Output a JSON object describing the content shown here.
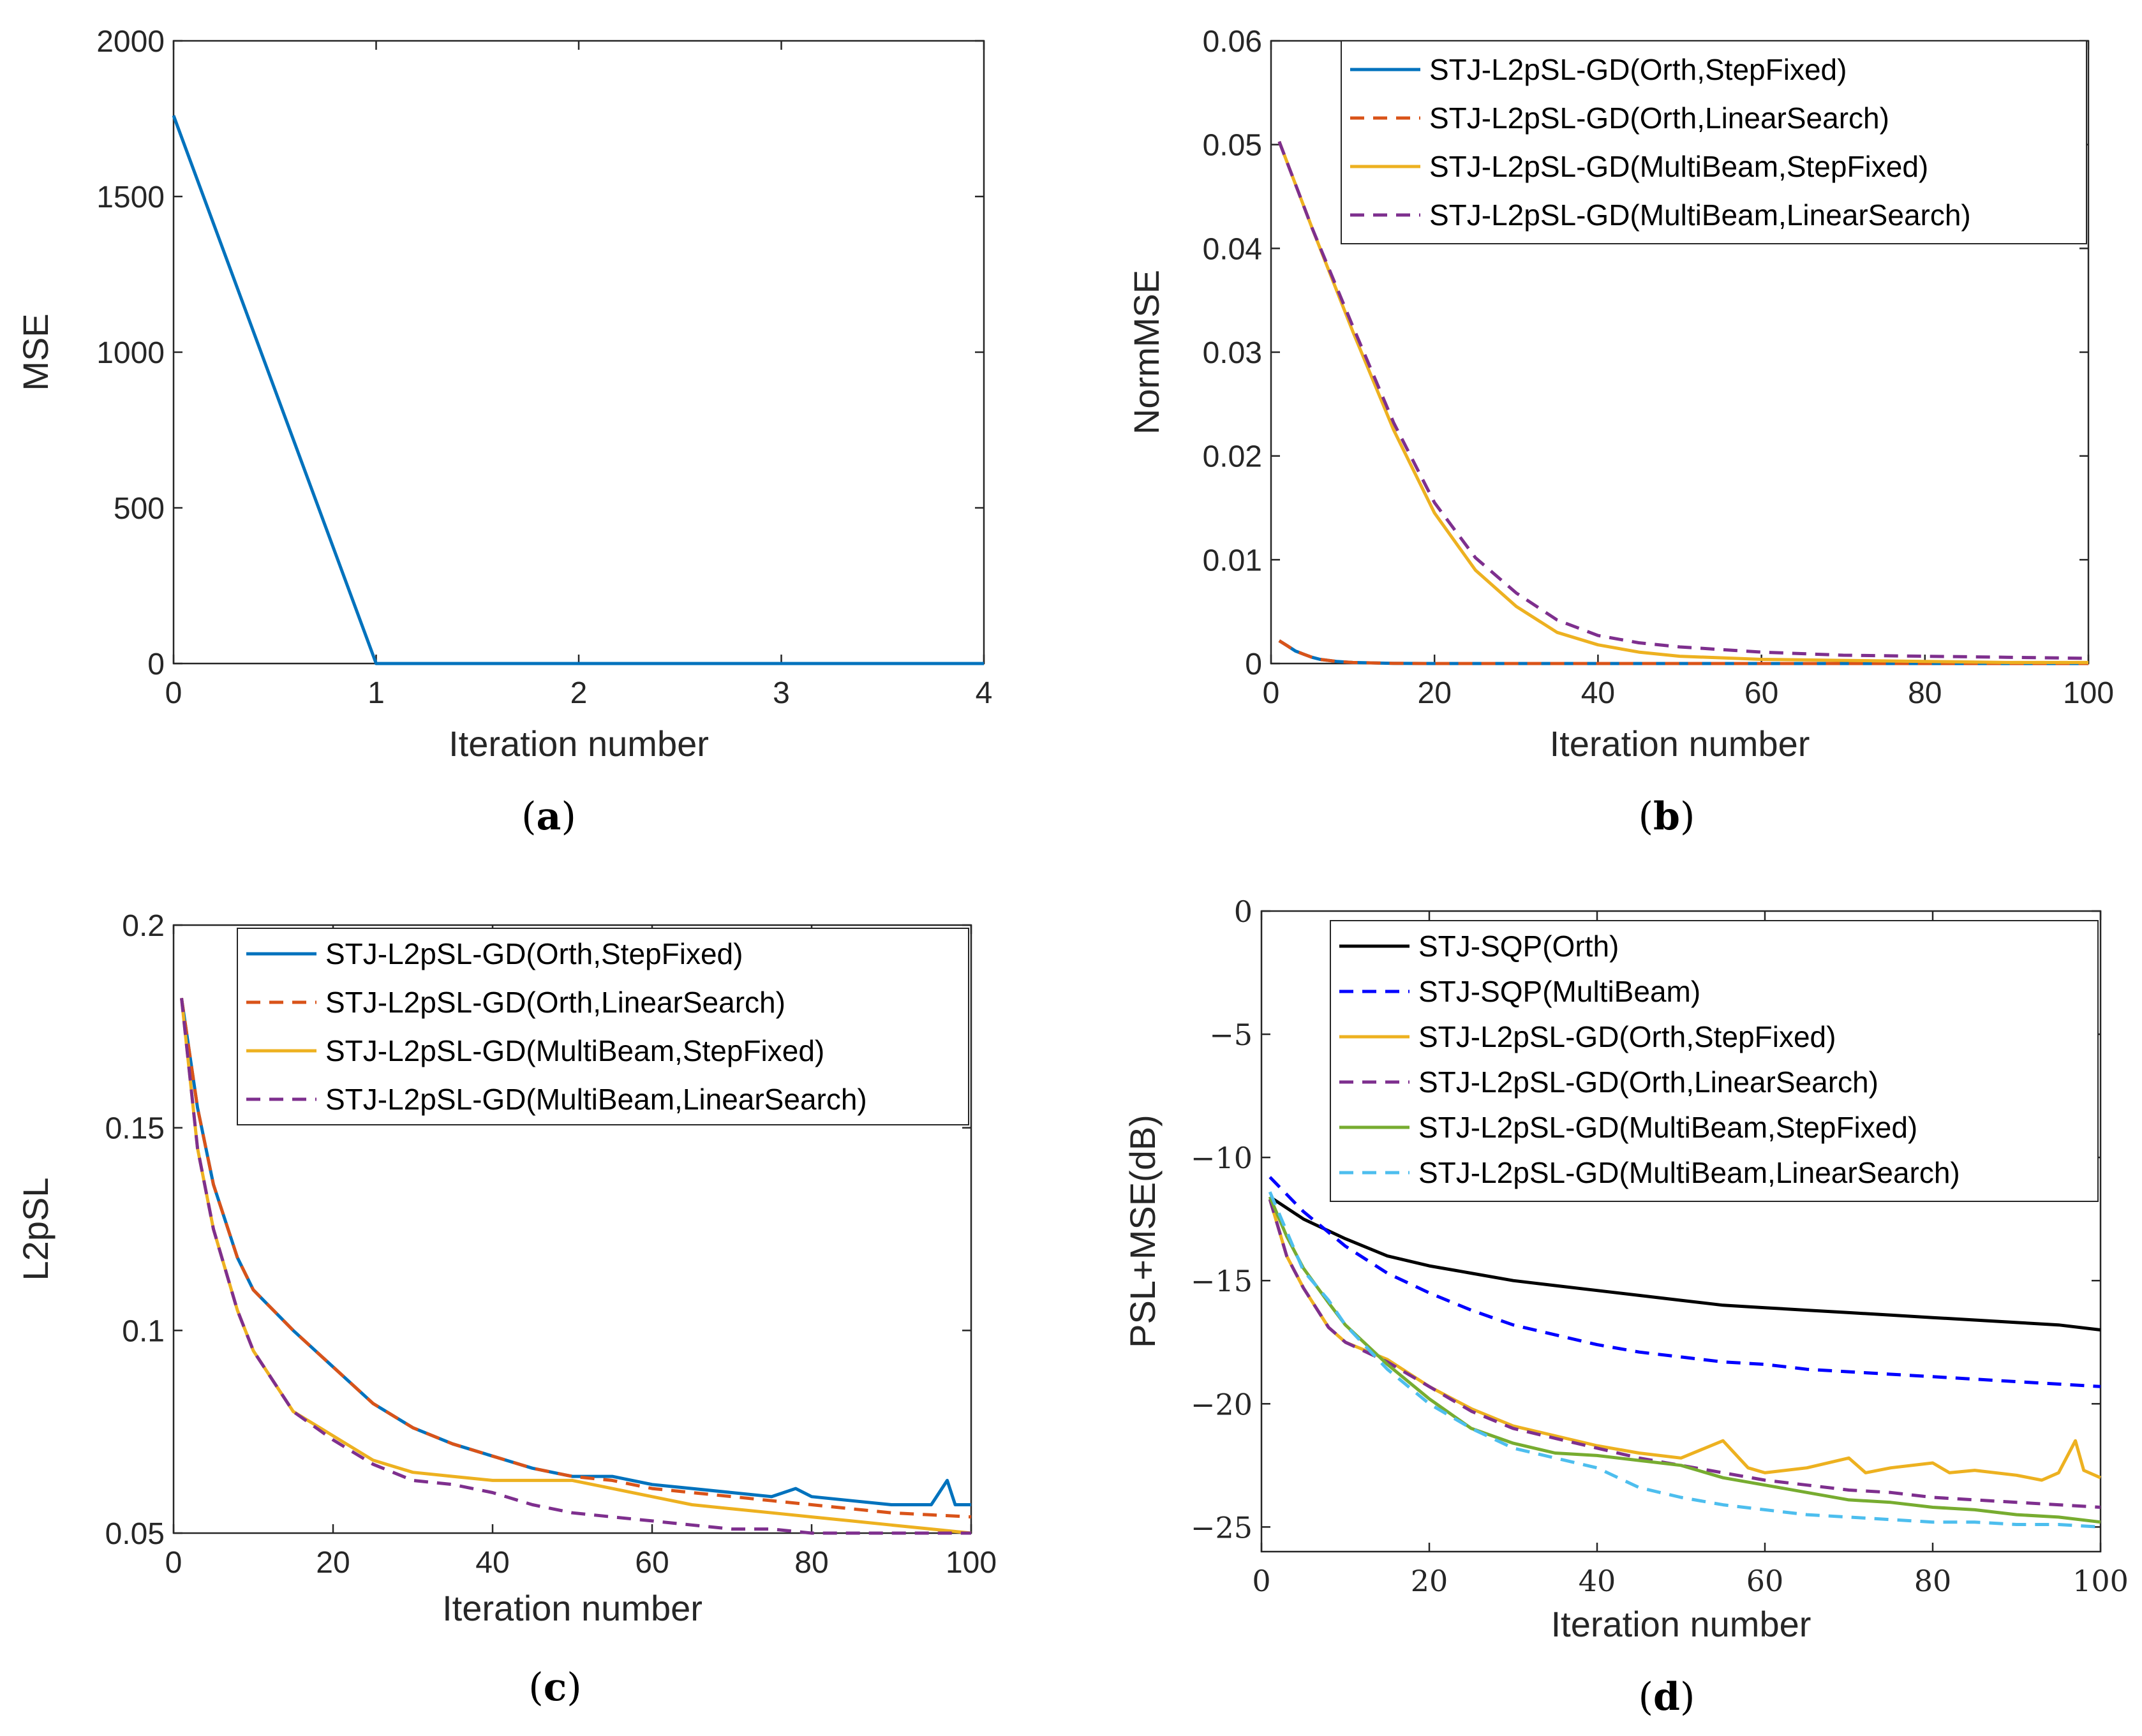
{
  "chart_data": [
    {
      "id": "a",
      "type": "line",
      "caption_open": "(",
      "caption_letter": "a",
      "caption_close": ")",
      "xlabel": "Iteration number",
      "ylabel": "MSE",
      "xlim": [
        0,
        4
      ],
      "ylim": [
        0,
        2000
      ],
      "xticks": [
        0,
        1,
        2,
        3,
        4
      ],
      "xtick_labels": [
        "0",
        "1",
        "2",
        "3",
        "4"
      ],
      "yticks": [
        0,
        500,
        1000,
        1500,
        2000
      ],
      "ytick_labels": [
        "0",
        "500",
        "1000",
        "1500",
        "2000"
      ],
      "series": [
        {
          "name": "MSE",
          "color": "#0072BD",
          "dash": "solid",
          "x": [
            0,
            1,
            2,
            3,
            4
          ],
          "y": [
            1760,
            0,
            0,
            0,
            0
          ]
        }
      ]
    },
    {
      "id": "b",
      "type": "line",
      "caption_open": "(",
      "caption_letter": "b",
      "caption_close": ")",
      "xlabel": "Iteration number",
      "ylabel": "NormMSE",
      "xlim": [
        0,
        100
      ],
      "ylim": [
        0,
        0.06
      ],
      "xticks": [
        0,
        20,
        40,
        60,
        80,
        100
      ],
      "xtick_labels": [
        "0",
        "20",
        "40",
        "60",
        "80",
        "100"
      ],
      "yticks": [
        0,
        0.01,
        0.02,
        0.03,
        0.04,
        0.05,
        0.06
      ],
      "ytick_labels": [
        "0",
        "0.01",
        "0.02",
        "0.03",
        "0.04",
        "0.05",
        "0.06"
      ],
      "legend_position": "top-right",
      "series": [
        {
          "name": "STJ-L2pSL-GD(Orth,StepFixed)",
          "color": "#0072BD",
          "dash": "solid",
          "x": [
            1,
            2,
            3,
            4,
            5,
            6,
            8,
            10,
            15,
            20,
            30,
            50,
            100
          ],
          "y": [
            0.0022,
            0.0017,
            0.0012,
            0.0009,
            0.0006,
            0.0004,
            0.0002,
            0.0001,
            2e-05,
            0,
            0,
            0,
            0
          ]
        },
        {
          "name": "STJ-L2pSL-GD(Orth,LinearSearch)",
          "color": "#D95319",
          "dash": "dashed",
          "x": [
            1,
            2,
            3,
            4,
            5,
            6,
            8,
            10,
            15,
            20,
            30,
            50,
            100
          ],
          "y": [
            0.0022,
            0.0017,
            0.0012,
            0.0009,
            0.0006,
            0.0004,
            0.0002,
            0.0001,
            2e-05,
            0,
            0,
            0,
            0
          ]
        },
        {
          "name": "STJ-L2pSL-GD(MultiBeam,StepFixed)",
          "color": "#EDB120",
          "dash": "solid",
          "x": [
            1,
            5,
            10,
            15,
            20,
            25,
            30,
            35,
            40,
            45,
            50,
            60,
            70,
            80,
            90,
            100
          ],
          "y": [
            0.0503,
            0.042,
            0.032,
            0.0225,
            0.0145,
            0.009,
            0.0055,
            0.003,
            0.0018,
            0.0011,
            0.0007,
            0.0004,
            0.0003,
            0.0002,
            0.0001,
            0.0001
          ]
        },
        {
          "name": "STJ-L2pSL-GD(MultiBeam,LinearSearch)",
          "color": "#7E2F8E",
          "dash": "dashed",
          "x": [
            1,
            5,
            10,
            15,
            20,
            25,
            30,
            35,
            40,
            45,
            50,
            60,
            70,
            80,
            90,
            100
          ],
          "y": [
            0.0503,
            0.042,
            0.0325,
            0.0232,
            0.0155,
            0.0102,
            0.0068,
            0.0042,
            0.0027,
            0.002,
            0.0016,
            0.0011,
            0.0008,
            0.0007,
            0.0006,
            0.0005
          ]
        }
      ]
    },
    {
      "id": "c",
      "type": "line",
      "caption_open": "(",
      "caption_letter": "c",
      "caption_close": ")",
      "xlabel": "Iteration number",
      "ylabel": "L2pSL",
      "xlim": [
        0,
        100
      ],
      "ylim": [
        0.05,
        0.2
      ],
      "xticks": [
        0,
        20,
        40,
        60,
        80,
        100
      ],
      "xtick_labels": [
        "0",
        "20",
        "40",
        "60",
        "80",
        "100"
      ],
      "yticks": [
        0.05,
        0.1,
        0.15,
        0.2
      ],
      "ytick_labels": [
        "0.05",
        "0.1",
        "0.15",
        "0.2"
      ],
      "legend_position": "top-right",
      "series": [
        {
          "name": "STJ-L2pSL-GD(Orth,StepFixed)",
          "color": "#0072BD",
          "dash": "solid",
          "x": [
            1,
            3,
            5,
            8,
            10,
            15,
            20,
            25,
            30,
            35,
            40,
            45,
            50,
            55,
            60,
            65,
            70,
            75,
            78,
            80,
            85,
            90,
            95,
            97,
            98,
            100
          ],
          "y": [
            0.182,
            0.155,
            0.136,
            0.118,
            0.11,
            0.1,
            0.091,
            0.082,
            0.076,
            0.072,
            0.069,
            0.066,
            0.064,
            0.064,
            0.062,
            0.061,
            0.06,
            0.059,
            0.061,
            0.059,
            0.058,
            0.057,
            0.057,
            0.063,
            0.057,
            0.057
          ]
        },
        {
          "name": "STJ-L2pSL-GD(Orth,LinearSearch)",
          "color": "#D95319",
          "dash": "dashed",
          "x": [
            1,
            3,
            5,
            8,
            10,
            15,
            20,
            25,
            30,
            35,
            40,
            45,
            50,
            55,
            60,
            65,
            70,
            75,
            80,
            85,
            90,
            95,
            100
          ],
          "y": [
            0.182,
            0.155,
            0.136,
            0.118,
            0.11,
            0.1,
            0.091,
            0.082,
            0.076,
            0.072,
            0.069,
            0.066,
            0.064,
            0.063,
            0.061,
            0.06,
            0.059,
            0.058,
            0.057,
            0.056,
            0.055,
            0.0545,
            0.054
          ]
        },
        {
          "name": "STJ-L2pSL-GD(MultiBeam,StepFixed)",
          "color": "#EDB120",
          "dash": "solid",
          "x": [
            1,
            3,
            5,
            8,
            10,
            15,
            20,
            25,
            30,
            35,
            40,
            45,
            50,
            55,
            60,
            65,
            70,
            75,
            80,
            85,
            90,
            95,
            100
          ],
          "y": [
            0.182,
            0.145,
            0.125,
            0.105,
            0.095,
            0.08,
            0.074,
            0.068,
            0.065,
            0.064,
            0.063,
            0.063,
            0.063,
            0.061,
            0.059,
            0.057,
            0.056,
            0.055,
            0.054,
            0.053,
            0.052,
            0.051,
            0.05
          ]
        },
        {
          "name": "STJ-L2pSL-GD(MultiBeam,LinearSearch)",
          "color": "#7E2F8E",
          "dash": "dashed",
          "x": [
            1,
            3,
            5,
            8,
            10,
            15,
            20,
            25,
            30,
            35,
            40,
            45,
            50,
            55,
            60,
            65,
            70,
            75,
            80,
            85,
            90,
            95,
            100
          ],
          "y": [
            0.182,
            0.145,
            0.125,
            0.105,
            0.095,
            0.08,
            0.073,
            0.067,
            0.063,
            0.062,
            0.06,
            0.057,
            0.055,
            0.054,
            0.053,
            0.052,
            0.051,
            0.051,
            0.05,
            0.05,
            0.05,
            0.05,
            0.05
          ]
        }
      ]
    },
    {
      "id": "d",
      "type": "line",
      "caption_open": "(",
      "caption_letter": "d",
      "caption_close": ")",
      "xlabel": "Iteration number",
      "ylabel": "PSL+MSE(dB)",
      "xlim": [
        0,
        100
      ],
      "ylim": [
        -26,
        0
      ],
      "xticks": [
        0,
        20,
        40,
        60,
        80,
        100
      ],
      "xtick_labels": [
        "0",
        "20",
        "40",
        "60",
        "80",
        "100"
      ],
      "yticks": [
        -25,
        -20,
        -15,
        -10,
        -5,
        0
      ],
      "ytick_labels": [
        "−25",
        "−20",
        "−15",
        "−10",
        "−5",
        "0"
      ],
      "legend_position": "top-right",
      "series": [
        {
          "name": "STJ-SQP(Orth)",
          "color": "#000000",
          "dash": "solid",
          "x": [
            1,
            5,
            10,
            15,
            20,
            25,
            30,
            35,
            40,
            45,
            50,
            55,
            60,
            65,
            70,
            75,
            80,
            85,
            90,
            95,
            100
          ],
          "y": [
            -11.6,
            -12.5,
            -13.3,
            -14,
            -14.4,
            -14.7,
            -15,
            -15.2,
            -15.4,
            -15.6,
            -15.8,
            -16,
            -16.1,
            -16.2,
            -16.3,
            -16.4,
            -16.5,
            -16.6,
            -16.7,
            -16.8,
            -17
          ]
        },
        {
          "name": "STJ-SQP(MultiBeam)",
          "color": "#0000FF",
          "dash": "dashed",
          "x": [
            1,
            5,
            10,
            15,
            20,
            25,
            30,
            35,
            40,
            45,
            50,
            55,
            60,
            65,
            70,
            75,
            80,
            85,
            90,
            95,
            100
          ],
          "y": [
            -10.8,
            -12.2,
            -13.6,
            -14.7,
            -15.5,
            -16.2,
            -16.8,
            -17.2,
            -17.6,
            -17.9,
            -18.1,
            -18.3,
            -18.4,
            -18.6,
            -18.7,
            -18.8,
            -18.9,
            -19,
            -19.1,
            -19.2,
            -19.3
          ]
        },
        {
          "name": "STJ-L2pSL-GD(Orth,StepFixed)",
          "color": "#EDB120",
          "dash": "solid",
          "x": [
            1,
            3,
            5,
            8,
            10,
            15,
            20,
            25,
            30,
            35,
            40,
            45,
            50,
            55,
            58,
            60,
            65,
            70,
            72,
            75,
            80,
            82,
            85,
            90,
            93,
            95,
            97,
            98,
            100
          ],
          "y": [
            -11.7,
            -14,
            -15.3,
            -16.9,
            -17.5,
            -18.2,
            -19.3,
            -20.2,
            -20.9,
            -21.3,
            -21.7,
            -22,
            -22.2,
            -21.5,
            -22.6,
            -22.8,
            -22.6,
            -22.2,
            -22.8,
            -22.6,
            -22.4,
            -22.8,
            -22.7,
            -22.9,
            -23.1,
            -22.8,
            -21.5,
            -22.7,
            -23
          ]
        },
        {
          "name": "STJ-L2pSL-GD(Orth,LinearSearch)",
          "color": "#7E2F8E",
          "dash": "dashed",
          "x": [
            1,
            3,
            5,
            8,
            10,
            15,
            20,
            25,
            30,
            35,
            40,
            45,
            50,
            55,
            60,
            65,
            70,
            75,
            80,
            85,
            90,
            95,
            100
          ],
          "y": [
            -11.7,
            -14,
            -15.3,
            -16.9,
            -17.5,
            -18.3,
            -19.3,
            -20.3,
            -21,
            -21.4,
            -21.8,
            -22.2,
            -22.5,
            -22.8,
            -23.1,
            -23.3,
            -23.5,
            -23.6,
            -23.8,
            -23.9,
            -24,
            -24.1,
            -24.2
          ]
        },
        {
          "name": "STJ-L2pSL-GD(MultiBeam,StepFixed)",
          "color": "#77AC30",
          "dash": "solid",
          "x": [
            1,
            3,
            5,
            8,
            10,
            15,
            20,
            25,
            30,
            35,
            40,
            45,
            50,
            55,
            60,
            65,
            70,
            75,
            80,
            85,
            90,
            95,
            100
          ],
          "y": [
            -11.6,
            -13.2,
            -14.5,
            -15.9,
            -16.8,
            -18.4,
            -19.8,
            -21,
            -21.6,
            -22,
            -22.1,
            -22.3,
            -22.5,
            -23,
            -23.3,
            -23.6,
            -23.9,
            -24,
            -24.2,
            -24.3,
            -24.5,
            -24.6,
            -24.8
          ]
        },
        {
          "name": "STJ-L2pSL-GD(MultiBeam,LinearSearch)",
          "color": "#4DBEEE",
          "dash": "dashed",
          "x": [
            1,
            3,
            5,
            8,
            10,
            15,
            20,
            25,
            30,
            35,
            40,
            45,
            50,
            55,
            60,
            65,
            70,
            75,
            80,
            85,
            90,
            95,
            100
          ],
          "y": [
            -11.4,
            -13,
            -14.6,
            -15.8,
            -16.8,
            -18.6,
            -20,
            -21,
            -21.8,
            -22.2,
            -22.6,
            -23.4,
            -23.8,
            -24.1,
            -24.3,
            -24.5,
            -24.6,
            -24.7,
            -24.8,
            -24.8,
            -24.9,
            -24.9,
            -25
          ]
        }
      ]
    }
  ]
}
